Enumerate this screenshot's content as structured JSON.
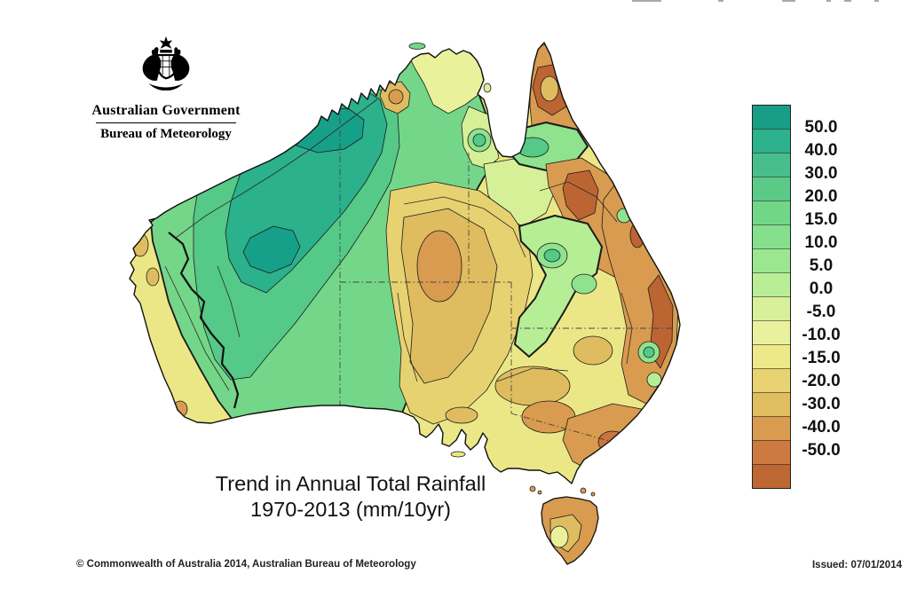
{
  "header": {
    "emblem": "australian-coat-of-arms",
    "government_label": "Australian Government",
    "agency_label": "Bureau of Meteorology"
  },
  "map": {
    "subject": "Australia rainfall trend contour map",
    "title_line1": "Trend in Annual Total Rainfall",
    "title_line2": "1970-2013 (mm/10yr)"
  },
  "legend": {
    "tick_labels": [
      "50.0",
      "40.0",
      "30.0",
      "20.0",
      "15.0",
      "10.0",
      "5.0",
      "0.0",
      "-5.0",
      "-10.0",
      "-15.0",
      "-20.0",
      "-30.0",
      "-40.0",
      "-50.0"
    ],
    "segment_colors": [
      "#189e86",
      "#2eb18d",
      "#48be8d",
      "#5bca87",
      "#72d689",
      "#86df8d",
      "#9ae790",
      "#b8ee96",
      "#d8f09a",
      "#eaf19d",
      "#ede889",
      "#e8d271",
      "#e0bd60",
      "#d99b4f",
      "#cc7a40",
      "#bd6733"
    ]
  },
  "footer": {
    "copyright": "© Commonwealth of Australia 2014, Australian Bureau of Meteorology",
    "issued": "Issued: 07/01/2014"
  },
  "palette": {
    "teal_dark": "#17a089",
    "teal": "#2bb18c",
    "green_med": "#55c987",
    "green": "#74d689",
    "green_light": "#8fe28e",
    "green_pale": "#b6ee95",
    "lime_pale": "#d6f098",
    "yellow_pale": "#e9f19b",
    "yellow": "#ece786",
    "sand": "#e7d271",
    "tan": "#dfbc60",
    "orange_tan": "#d89b4f",
    "orange": "#cb7440",
    "brown": "#bc6533",
    "outline": "#1b1b1b"
  }
}
